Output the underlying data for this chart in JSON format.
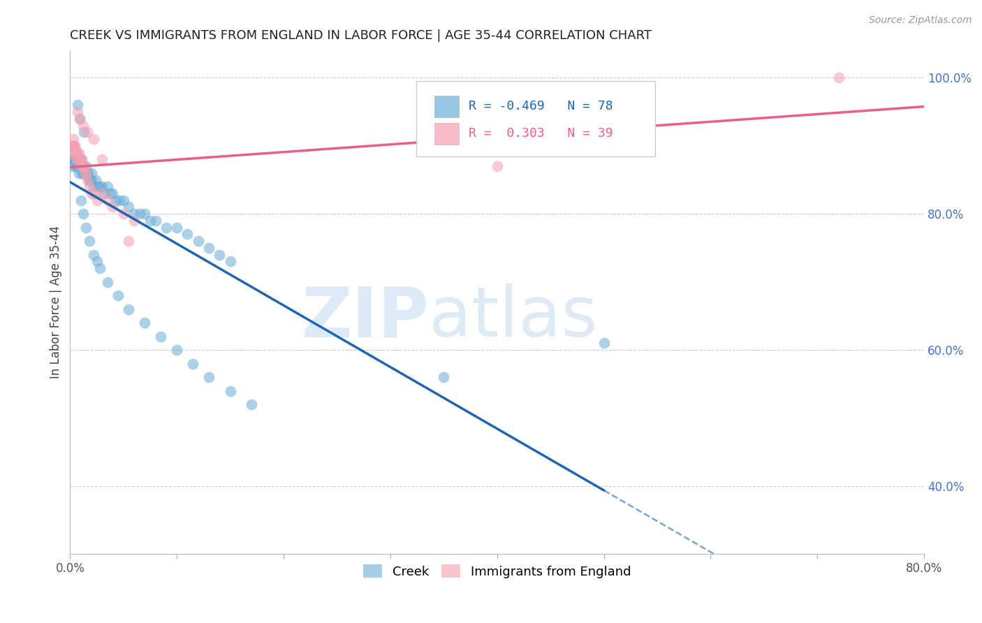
{
  "title": "CREEK VS IMMIGRANTS FROM ENGLAND IN LABOR FORCE | AGE 35-44 CORRELATION CHART",
  "source": "Source: ZipAtlas.com",
  "ylabel": "In Labor Force | Age 35-44",
  "xlim": [
    0.0,
    0.8
  ],
  "ylim": [
    0.3,
    1.04
  ],
  "yticks_right": [
    0.4,
    0.6,
    0.8,
    1.0
  ],
  "yticklabels_right": [
    "40.0%",
    "60.0%",
    "80.0%",
    "100.0%"
  ],
  "creek_color": "#6baed6",
  "england_color": "#f4a0b0",
  "creek_R": -0.469,
  "creek_N": 78,
  "england_R": 0.303,
  "england_N": 39,
  "creek_line_color": "#2166ac",
  "england_line_color": "#e8608a",
  "watermark_zip": "ZIP",
  "watermark_atlas": "atlas",
  "creek_x": [
    0.001,
    0.002,
    0.003,
    0.003,
    0.004,
    0.005,
    0.005,
    0.006,
    0.006,
    0.007,
    0.007,
    0.008,
    0.008,
    0.009,
    0.01,
    0.01,
    0.011,
    0.011,
    0.012,
    0.012,
    0.013,
    0.013,
    0.014,
    0.015,
    0.015,
    0.016,
    0.017,
    0.018,
    0.019,
    0.02,
    0.02,
    0.022,
    0.024,
    0.026,
    0.028,
    0.03,
    0.032,
    0.035,
    0.038,
    0.04,
    0.043,
    0.046,
    0.05,
    0.055,
    0.06,
    0.065,
    0.07,
    0.075,
    0.08,
    0.09,
    0.1,
    0.11,
    0.12,
    0.13,
    0.14,
    0.15,
    0.01,
    0.012,
    0.015,
    0.018,
    0.022,
    0.028,
    0.035,
    0.045,
    0.055,
    0.07,
    0.085,
    0.1,
    0.115,
    0.13,
    0.15,
    0.17,
    0.35,
    0.5,
    0.007,
    0.009,
    0.013,
    0.025
  ],
  "creek_y": [
    0.88,
    0.87,
    0.88,
    0.9,
    0.88,
    0.88,
    0.87,
    0.87,
    0.88,
    0.88,
    0.87,
    0.88,
    0.86,
    0.87,
    0.88,
    0.87,
    0.87,
    0.86,
    0.87,
    0.86,
    0.87,
    0.86,
    0.86,
    0.87,
    0.86,
    0.86,
    0.86,
    0.85,
    0.85,
    0.86,
    0.85,
    0.84,
    0.85,
    0.84,
    0.84,
    0.84,
    0.83,
    0.84,
    0.83,
    0.83,
    0.82,
    0.82,
    0.82,
    0.81,
    0.8,
    0.8,
    0.8,
    0.79,
    0.79,
    0.78,
    0.78,
    0.77,
    0.76,
    0.75,
    0.74,
    0.73,
    0.82,
    0.8,
    0.78,
    0.76,
    0.74,
    0.72,
    0.7,
    0.68,
    0.66,
    0.64,
    0.62,
    0.6,
    0.58,
    0.56,
    0.54,
    0.52,
    0.56,
    0.61,
    0.96,
    0.94,
    0.92,
    0.73
  ],
  "england_x": [
    0.001,
    0.002,
    0.003,
    0.003,
    0.004,
    0.005,
    0.005,
    0.006,
    0.006,
    0.007,
    0.007,
    0.008,
    0.009,
    0.01,
    0.01,
    0.011,
    0.012,
    0.013,
    0.014,
    0.015,
    0.016,
    0.018,
    0.02,
    0.022,
    0.025,
    0.03,
    0.035,
    0.04,
    0.05,
    0.06,
    0.007,
    0.009,
    0.012,
    0.016,
    0.022,
    0.03,
    0.055,
    0.4,
    0.72
  ],
  "england_y": [
    0.9,
    0.89,
    0.9,
    0.91,
    0.9,
    0.89,
    0.9,
    0.89,
    0.88,
    0.89,
    0.88,
    0.89,
    0.88,
    0.88,
    0.87,
    0.88,
    0.87,
    0.87,
    0.86,
    0.86,
    0.85,
    0.84,
    0.83,
    0.83,
    0.82,
    0.83,
    0.82,
    0.81,
    0.8,
    0.79,
    0.95,
    0.94,
    0.93,
    0.92,
    0.91,
    0.88,
    0.76,
    0.87,
    1.0
  ]
}
